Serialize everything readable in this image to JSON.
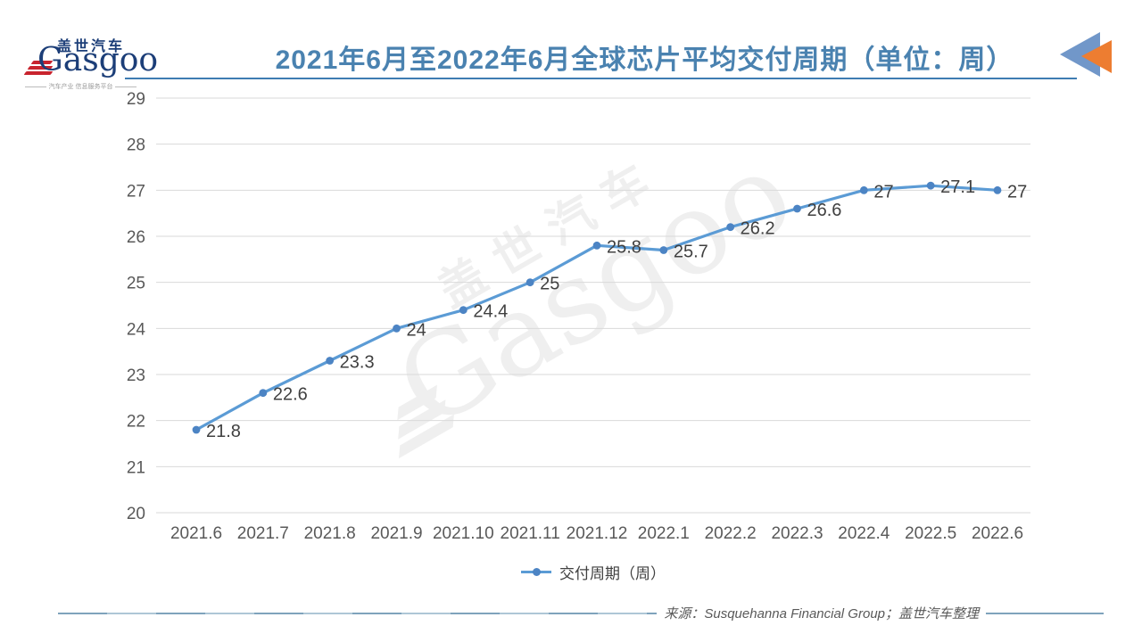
{
  "header": {
    "logo": {
      "brand_cn": "盖世汽车",
      "brand_en": "Gasgoo",
      "tagline": "汽车产业 信息服务平台"
    },
    "title": "2021年6月至2022年6月全球芯片平均交付周期（单位：周）"
  },
  "chart_data": {
    "type": "line",
    "title": "2021年6月至2022年6月全球芯片平均交付周期（单位：周）",
    "categories": [
      "2021.6",
      "2021.7",
      "2021.8",
      "2021.9",
      "2021.10",
      "2021.11",
      "2021.12",
      "2022.1",
      "2022.2",
      "2022.3",
      "2022.4",
      "2022.5",
      "2022.6"
    ],
    "series": [
      {
        "name": "交付周期（周）",
        "values": [
          21.8,
          22.6,
          23.3,
          24,
          24.4,
          25,
          25.8,
          25.7,
          26.2,
          26.6,
          27,
          27.1,
          27
        ],
        "point_labels": [
          "21.8",
          "22.6",
          "23.3",
          "24",
          "24.4",
          "25",
          "25.8",
          "25.7",
          "26.2",
          "26.6",
          "27",
          "27.1",
          "27"
        ]
      }
    ],
    "ylim": [
      20,
      29
    ],
    "yticks": [
      20,
      21,
      22,
      23,
      24,
      25,
      26,
      27,
      28,
      29
    ],
    "xlabel": "",
    "ylabel": "",
    "grid": "horizontal",
    "legend_position": "bottom",
    "data_labels": true
  },
  "legend": {
    "label": "交付周期（周）"
  },
  "watermark": {
    "text_cn": "盖世汽车",
    "text_en": "Gasgoo"
  },
  "footer": {
    "source": "来源：Susquehanna Financial Group；盖世汽车整理"
  },
  "colors": {
    "title": "#4A82B0",
    "underline": "#3E7CB2",
    "line": "#5B9BD5",
    "marker": "#4C84C4",
    "grid": "#D9D9D9",
    "tick_text": "#595959",
    "label_text": "#404040",
    "triangle_blue": "#7197C9",
    "triangle_orange": "#ED7D31"
  }
}
